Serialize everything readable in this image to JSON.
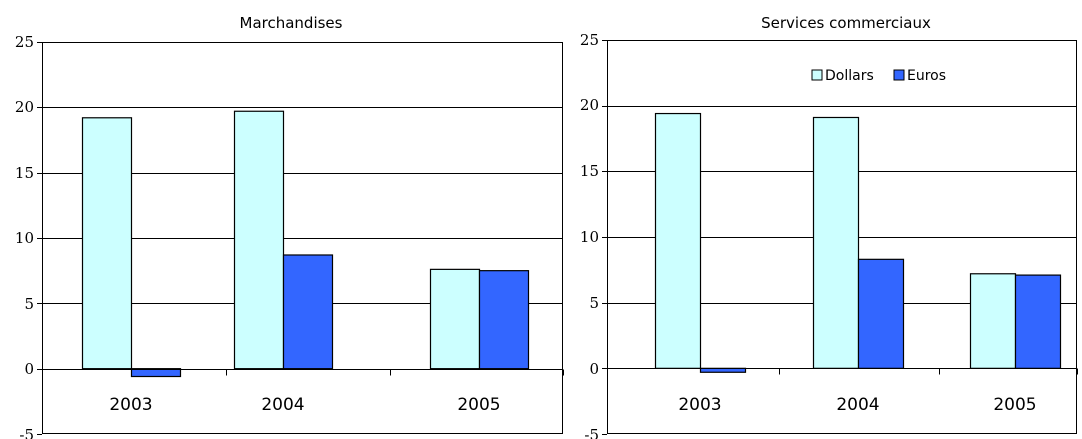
{
  "chart_data": [
    {
      "type": "bar",
      "title": "Marchandises",
      "categories": [
        "2003",
        "2004",
        "2005"
      ],
      "series": [
        {
          "name": "Dollars",
          "values": [
            19.2,
            19.7,
            7.6
          ]
        },
        {
          "name": "Euros",
          "values": [
            -0.6,
            8.7,
            7.5
          ]
        }
      ],
      "ylim": [
        -5,
        25
      ],
      "yticks": [
        "25",
        "20",
        "15",
        "10",
        "5",
        "0",
        "-5"
      ],
      "grid": true,
      "legend": null,
      "colors": {
        "Dollars": "#ccffff",
        "Euros": "#3366ff"
      }
    },
    {
      "type": "bar",
      "title": "Services commerciaux",
      "categories": [
        "2003",
        "2004",
        "2005"
      ],
      "series": [
        {
          "name": "Dollars",
          "values": [
            19.4,
            19.1,
            7.2
          ]
        },
        {
          "name": "Euros",
          "values": [
            -0.3,
            8.3,
            7.1
          ]
        }
      ],
      "ylim": [
        -5,
        25
      ],
      "yticks": [
        "25",
        "20",
        "15",
        "10",
        "5",
        "0",
        "-5"
      ],
      "grid": true,
      "legend": "top-right",
      "colors": {
        "Dollars": "#ccffff",
        "Euros": "#3366ff"
      }
    }
  ]
}
